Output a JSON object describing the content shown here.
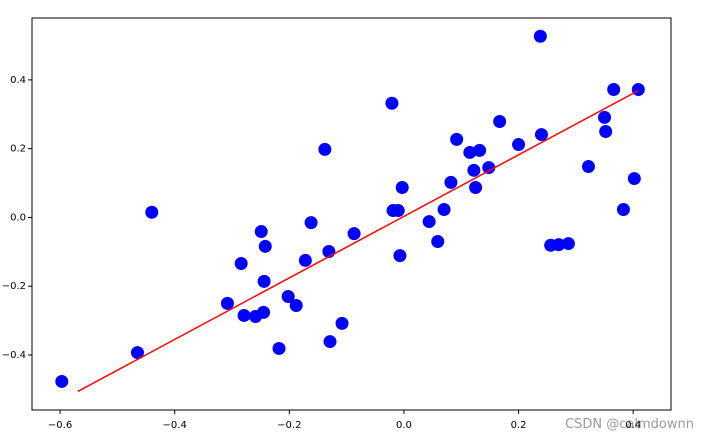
{
  "chart_data": {
    "type": "scatter",
    "series": [
      {
        "color": "#0000ff",
        "x": [
          -0.597,
          -0.465,
          -0.44,
          -0.308,
          -0.284,
          -0.279,
          -0.259,
          -0.249,
          -0.242,
          -0.244,
          -0.245,
          -0.218,
          -0.202,
          -0.188,
          -0.172,
          -0.162,
          -0.138,
          -0.131,
          -0.129,
          -0.108,
          -0.087,
          -0.021,
          -0.019,
          -0.01,
          -0.007,
          -0.003,
          0.044,
          0.059,
          0.07,
          0.082,
          0.092,
          0.115,
          0.122,
          0.125,
          0.132,
          0.148,
          0.167,
          0.2,
          0.238,
          0.24,
          0.256,
          0.27,
          0.287,
          0.322,
          0.35,
          0.352,
          0.366,
          0.383,
          0.402,
          0.409
        ],
        "values": [
          -0.477,
          -0.393,
          0.015,
          -0.25,
          -0.134,
          -0.285,
          -0.288,
          -0.041,
          -0.084,
          -0.186,
          -0.276,
          -0.381,
          -0.23,
          -0.256,
          -0.125,
          -0.015,
          0.198,
          -0.099,
          -0.361,
          -0.308,
          -0.047,
          0.332,
          0.02,
          0.02,
          -0.111,
          0.087,
          -0.012,
          -0.07,
          0.023,
          0.102,
          0.227,
          0.189,
          0.137,
          0.087,
          0.195,
          0.145,
          0.279,
          0.212,
          0.527,
          0.241,
          -0.081,
          -0.079,
          -0.076,
          0.148,
          0.291,
          0.25,
          0.372,
          0.023,
          0.113,
          0.372
        ]
      }
    ],
    "fit_line": {
      "color": "#ff0000",
      "x": [
        -0.569,
        0.409
      ],
      "values": [
        -0.506,
        0.369
      ]
    },
    "xlim": [
      -0.649,
      0.466
    ],
    "ylim": [
      -0.56,
      0.58
    ],
    "xticks": [
      {
        "value": -0.6,
        "label": "−0.6"
      },
      {
        "value": -0.4,
        "label": "−0.4"
      },
      {
        "value": -0.2,
        "label": "−0.2"
      },
      {
        "value": 0,
        "label": "0.0"
      },
      0.2,
      0.4
    ],
    "yticks": [
      {
        "value": -0.4,
        "label": "−0.4"
      },
      {
        "value": -0.2,
        "label": "−0.2"
      },
      {
        "value": 0,
        "label": "0.0"
      },
      0.2,
      0.4
    ],
    "watermark": "CSDN @calmdownn"
  }
}
